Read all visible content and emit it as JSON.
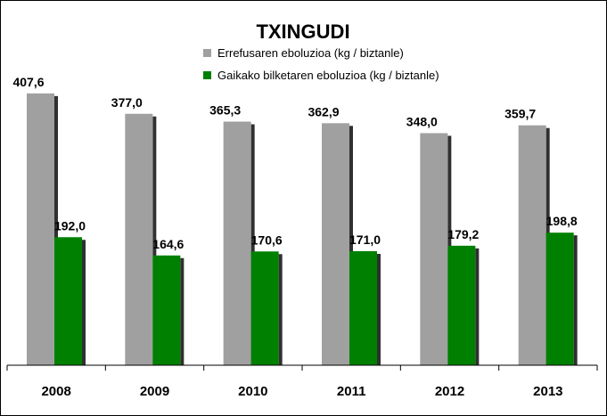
{
  "chart_data": {
    "type": "bar",
    "title": "TXINGUDI",
    "categories": [
      "2008",
      "2009",
      "2010",
      "2011",
      "2012",
      "2013"
    ],
    "series": [
      {
        "name": "Errefusaren eboluzioa (kg / biztanle)",
        "color": "#a0a0a0",
        "values": [
          407.6,
          377.0,
          365.3,
          362.9,
          348.0,
          359.7
        ],
        "labels": [
          "407,6",
          "377,0",
          "365,3",
          "362,9",
          "348,0",
          "359,7"
        ]
      },
      {
        "name": "Gaikako bilketaren eboluzioa (kg / biztanle)",
        "color": "#008000",
        "values": [
          192.0,
          164.6,
          170.6,
          171.0,
          179.2,
          198.8
        ],
        "labels": [
          "192,0",
          "164,6",
          "170,6",
          "171,0",
          "179,2",
          "198,8"
        ]
      }
    ],
    "ylim": [
      0,
      440
    ],
    "grid": false,
    "legend_position": "top-center",
    "xlabel": "",
    "ylabel": ""
  }
}
